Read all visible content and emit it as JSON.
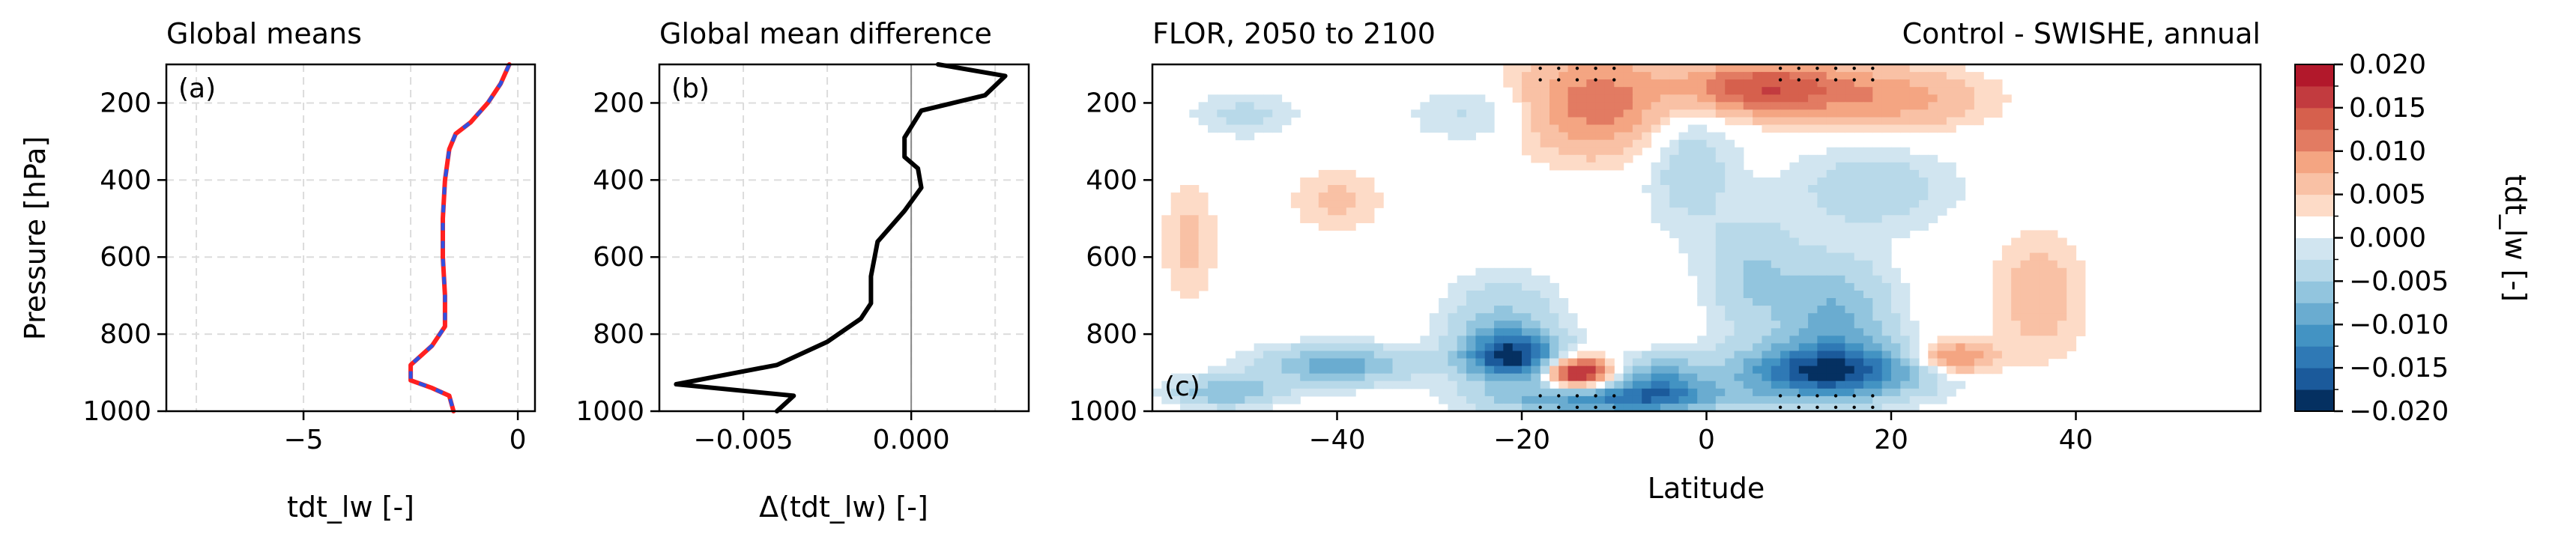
{
  "chart_data": [
    {
      "panel_label": "(a)",
      "type": "line",
      "title": "Global means",
      "xlabel": "tdt_lw [-]",
      "ylabel": "Pressure [hPa]",
      "xlim": [
        -8.2,
        0.4
      ],
      "ylim": [
        1000,
        100
      ],
      "xticks": [
        -5,
        0
      ],
      "yticks": [
        200,
        400,
        600,
        800,
        1000
      ],
      "grid": true,
      "series": [
        {
          "color": "#ff2020",
          "style": "solid",
          "points": [
            [
              -0.2,
              100
            ],
            [
              -0.4,
              150
            ],
            [
              -0.7,
              200
            ],
            [
              -1.1,
              250
            ],
            [
              -1.45,
              280
            ],
            [
              -1.6,
              320
            ],
            [
              -1.7,
              400
            ],
            [
              -1.75,
              500
            ],
            [
              -1.75,
              600
            ],
            [
              -1.7,
              700
            ],
            [
              -1.7,
              780
            ],
            [
              -2.0,
              830
            ],
            [
              -2.5,
              880
            ],
            [
              -2.5,
              920
            ],
            [
              -2.0,
              940
            ],
            [
              -1.6,
              960
            ],
            [
              -1.5,
              1000
            ]
          ]
        },
        {
          "color": "#3050e0",
          "style": "dashed",
          "points": [
            [
              -0.2,
              100
            ],
            [
              -0.4,
              150
            ],
            [
              -0.7,
              200
            ],
            [
              -1.1,
              250
            ],
            [
              -1.45,
              280
            ],
            [
              -1.6,
              320
            ],
            [
              -1.7,
              400
            ],
            [
              -1.75,
              500
            ],
            [
              -1.75,
              600
            ],
            [
              -1.7,
              700
            ],
            [
              -1.7,
              780
            ],
            [
              -2.0,
              830
            ],
            [
              -2.5,
              880
            ],
            [
              -2.5,
              920
            ],
            [
              -2.0,
              940
            ],
            [
              -1.6,
              960
            ],
            [
              -1.5,
              1000
            ]
          ]
        }
      ]
    },
    {
      "panel_label": "(b)",
      "type": "line",
      "title": "Global mean difference",
      "xlabel": "Δ(tdt_lw) [-]",
      "xlim": [
        -0.0075,
        0.0035
      ],
      "ylim": [
        1000,
        100
      ],
      "xticks": [
        -0.005,
        0.0
      ],
      "xtick_labels": [
        "−0.005",
        "0.000"
      ],
      "yticks": [
        200,
        400,
        600,
        800,
        1000
      ],
      "grid": true,
      "zero_line": 0.0,
      "series": [
        {
          "color": "#000000",
          "points": [
            [
              0.0008,
              100
            ],
            [
              0.0028,
              130
            ],
            [
              0.0022,
              180
            ],
            [
              0.0003,
              220
            ],
            [
              -0.0002,
              290
            ],
            [
              -0.0002,
              340
            ],
            [
              0.0002,
              370
            ],
            [
              0.0003,
              420
            ],
            [
              -0.0002,
              480
            ],
            [
              -0.001,
              560
            ],
            [
              -0.0012,
              650
            ],
            [
              -0.0012,
              720
            ],
            [
              -0.0015,
              760
            ],
            [
              -0.0025,
              820
            ],
            [
              -0.004,
              880
            ],
            [
              -0.007,
              930
            ],
            [
              -0.0035,
              960
            ],
            [
              -0.004,
              1000
            ]
          ]
        }
      ]
    },
    {
      "panel_label": "(c)",
      "type": "heatmap",
      "title_left": "FLOR, 2050 to 2100",
      "title_right": "Control - SWISHE, annual",
      "xlabel": "Latitude",
      "xlim": [
        -60,
        60
      ],
      "ylim": [
        1000,
        100
      ],
      "xticks": [
        -40,
        -20,
        0,
        20,
        40
      ],
      "xtick_labels": [
        "−40",
        "−20",
        "0",
        "20",
        "40"
      ],
      "yticks": [
        200,
        400,
        600,
        800,
        1000
      ],
      "blobs": [
        {
          "lat": -12,
          "p": 200,
          "dlat": 8,
          "dp": 130,
          "v": 0.009
        },
        {
          "lat": 6,
          "p": 160,
          "dlat": 9,
          "dp": 70,
          "v": 0.012
        },
        {
          "lat": 20,
          "p": 190,
          "dlat": 10,
          "dp": 80,
          "v": 0.006
        },
        {
          "lat": -50,
          "p": 230,
          "dlat": 6,
          "dp": 60,
          "v": -0.003
        },
        {
          "lat": -25,
          "p": 230,
          "dlat": 7,
          "dp": 70,
          "v": -0.003
        },
        {
          "lat": -2,
          "p": 350,
          "dlat": 5,
          "dp": 180,
          "v": -0.004
        },
        {
          "lat": 18,
          "p": 420,
          "dlat": 9,
          "dp": 110,
          "v": -0.004
        },
        {
          "lat": -40,
          "p": 450,
          "dlat": 5,
          "dp": 80,
          "v": 0.003
        },
        {
          "lat": 14,
          "p": 760,
          "dlat": 6,
          "dp": 150,
          "v": -0.008
        },
        {
          "lat": -22,
          "p": 790,
          "dlat": 6,
          "dp": 130,
          "v": -0.006
        },
        {
          "lat": -21,
          "p": 860,
          "dlat": 5,
          "dp": 60,
          "v": -0.015
        },
        {
          "lat": 13,
          "p": 900,
          "dlat": 10,
          "dp": 70,
          "v": -0.016
        },
        {
          "lat": -40,
          "p": 880,
          "dlat": 8,
          "dp": 50,
          "v": -0.009
        },
        {
          "lat": -14,
          "p": 900,
          "dlat": 3.5,
          "dp": 40,
          "v": 0.018
        },
        {
          "lat": -5,
          "p": 920,
          "dlat": 5,
          "dp": 60,
          "v": -0.009
        },
        {
          "lat": -10,
          "p": 970,
          "dlat": 12,
          "dp": 40,
          "v": -0.012
        },
        {
          "lat": -52,
          "p": 950,
          "dlat": 6,
          "dp": 40,
          "v": -0.007
        },
        {
          "lat": 36,
          "p": 700,
          "dlat": 5,
          "dp": 160,
          "v": 0.004
        },
        {
          "lat": 27,
          "p": 860,
          "dlat": 4,
          "dp": 40,
          "v": 0.009
        },
        {
          "lat": 5,
          "p": 650,
          "dlat": 5,
          "dp": 150,
          "v": -0.005
        },
        {
          "lat": -56,
          "p": 560,
          "dlat": 3,
          "dp": 150,
          "v": 0.003
        }
      ],
      "stipple_lat": [
        -18,
        -16,
        -14,
        -12,
        -10,
        8,
        10,
        12,
        14,
        16,
        18
      ],
      "stipple_p": [
        110,
        140
      ]
    },
    {
      "type": "colorbar",
      "label": "tdt_lw [-]",
      "levels": [
        -0.02,
        -0.0175,
        -0.015,
        -0.0125,
        -0.01,
        -0.0075,
        -0.005,
        -0.0025,
        0.0,
        0.0025,
        0.005,
        0.0075,
        0.01,
        0.0125,
        0.015,
        0.0175,
        0.02
      ],
      "colors": [
        "#053061",
        "#1b5a9b",
        "#2f79b5",
        "#4393c3",
        "#6aacd0",
        "#92c5de",
        "#b8d9e9",
        "#d1e5f0",
        "#ffffff",
        "#fddbc7",
        "#f9c1a5",
        "#f4a582",
        "#e27b62",
        "#d6604d",
        "#c23b3f",
        "#b2182b",
        "#67001f"
      ],
      "ticks": [
        0.02,
        0.015,
        0.01,
        0.005,
        0.0,
        -0.005,
        -0.01,
        -0.015,
        -0.02
      ],
      "tick_labels": [
        "0.020",
        "0.015",
        "0.010",
        "0.005",
        "0.000",
        "−0.005",
        "−0.010",
        "−0.015",
        "−0.020"
      ]
    }
  ]
}
